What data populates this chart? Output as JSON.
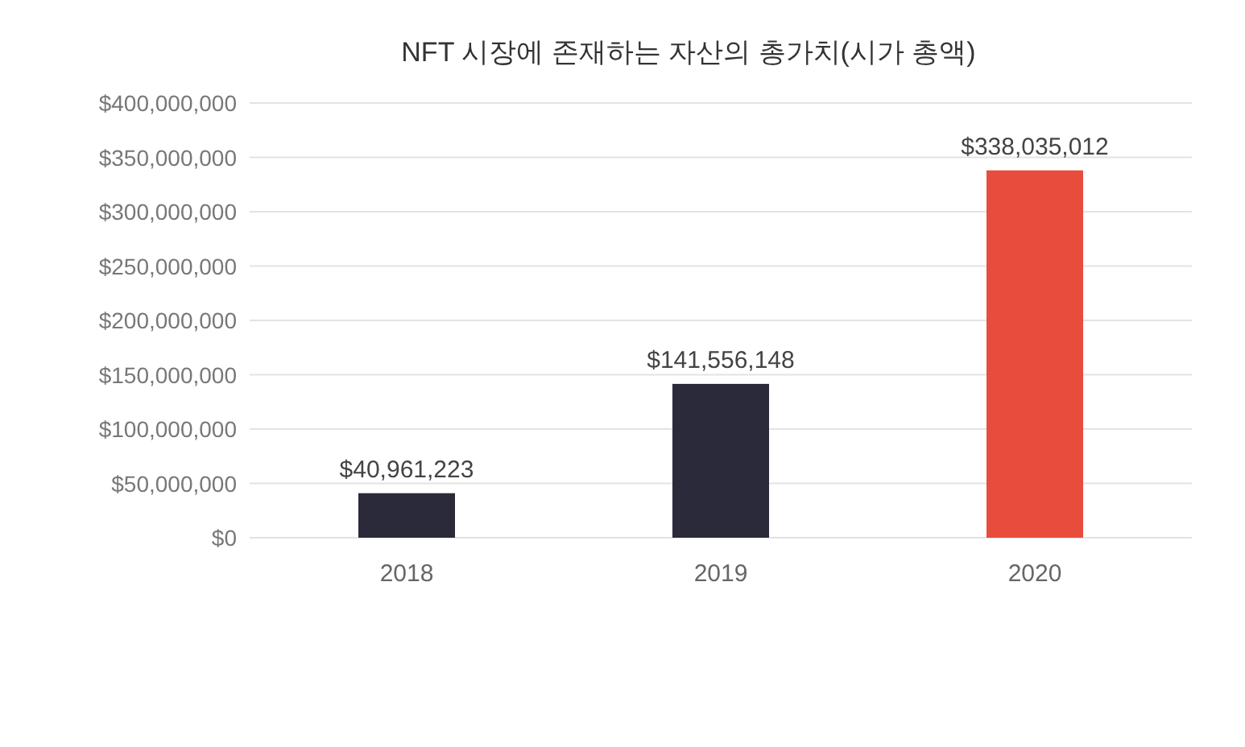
{
  "chart_data": {
    "type": "bar",
    "title": "NFT 시장에 존재하는 자산의 총가치(시가 총액)",
    "categories": [
      "2018",
      "2019",
      "2020"
    ],
    "values": [
      40961223,
      141556148,
      338035012
    ],
    "colors": [
      "#2b2a3a",
      "#2b2a3a",
      "#e84c3d"
    ],
    "value_labels": [
      "$40,961,223",
      "$141,556,148",
      "$338,035,012"
    ],
    "ylim": [
      0,
      400000000
    ],
    "yticks": [
      {
        "value": 0,
        "label": "$0"
      },
      {
        "value": 50000000,
        "label": "$50,000,000"
      },
      {
        "value": 100000000,
        "label": "$100,000,000"
      },
      {
        "value": 150000000,
        "label": "$150,000,000"
      },
      {
        "value": 200000000,
        "label": "$200,000,000"
      },
      {
        "value": 250000000,
        "label": "$250,000,000"
      },
      {
        "value": 300000000,
        "label": "$300,000,000"
      },
      {
        "value": 350000000,
        "label": "$350,000,000"
      },
      {
        "value": 400000000,
        "label": "$400,000,000"
      }
    ],
    "grid": "y"
  }
}
